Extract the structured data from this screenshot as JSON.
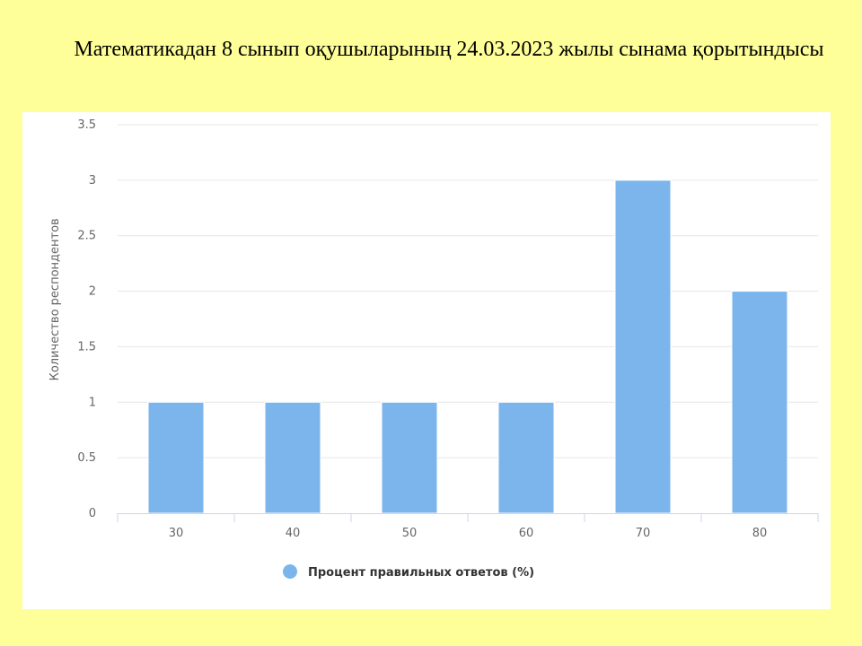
{
  "title": "Математикадан 8 сынып оқушыларының 24.03.2023 жылы сынама қорытындысы",
  "colors": {
    "background": "#ffff99",
    "panel": "#ffffff",
    "bar": "#7cb5ec",
    "grid": "#e6e6e6",
    "axis": "#ccd6eb"
  },
  "chart_data": {
    "type": "bar",
    "categories": [
      "30",
      "40",
      "50",
      "60",
      "70",
      "80"
    ],
    "series": [
      {
        "name": "Процент правильных ответов (%)",
        "values": [
          1,
          1,
          1,
          1,
          3,
          2
        ]
      }
    ],
    "xlabel": "",
    "ylabel": "Количество респондентов",
    "ylim": [
      0,
      3.5
    ],
    "yticks": [
      "0",
      "0.5",
      "1",
      "1.5",
      "2",
      "2.5",
      "3",
      "3.5"
    ],
    "grid": true,
    "legend": "bottom-center"
  }
}
